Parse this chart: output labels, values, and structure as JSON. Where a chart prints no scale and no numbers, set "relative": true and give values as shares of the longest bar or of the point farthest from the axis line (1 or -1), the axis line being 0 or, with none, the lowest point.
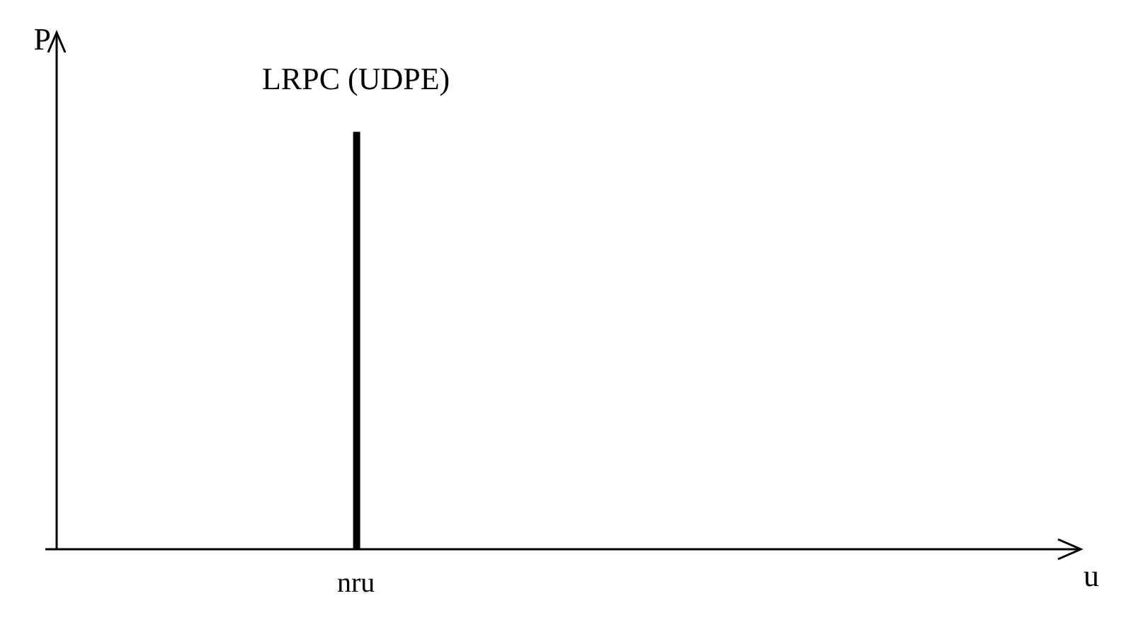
{
  "chart_data": {
    "type": "bar",
    "relative": true,
    "categories": [
      "nru"
    ],
    "values": [
      1
    ],
    "color": "#000000",
    "annotations": [
      "LRPC (UDPE)",
      "P",
      "u"
    ]
  }
}
